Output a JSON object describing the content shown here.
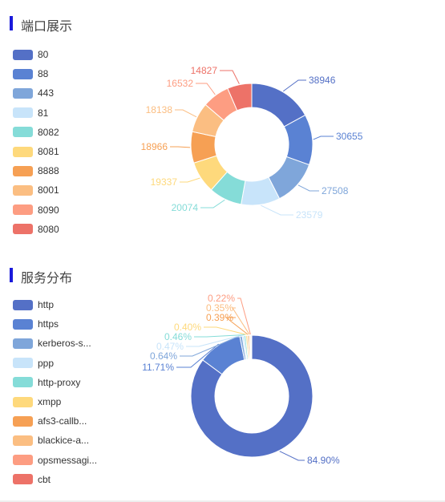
{
  "sections": [
    {
      "title": "端口展示"
    },
    {
      "title": "服务分布"
    }
  ],
  "chart_data": [
    {
      "type": "pie",
      "variant": "donut",
      "title": "端口展示",
      "categories": [
        "80",
        "88",
        "443",
        "81",
        "8082",
        "8081",
        "8888",
        "8001",
        "8090",
        "8080"
      ],
      "values": [
        38946,
        30655,
        27508,
        23579,
        20074,
        19337,
        18966,
        18138,
        16532,
        14827
      ],
      "labels": [
        "38946",
        "30655",
        "27508",
        "23579",
        "20074",
        "19337",
        "18966",
        "18138",
        "16532",
        "14827"
      ],
      "colors": [
        "#5470c6",
        "#5a82d3",
        "#7fa6da",
        "#c8e4fa",
        "#85dcd8",
        "#fed97c",
        "#f6a054",
        "#fbbe82",
        "#fd9d82",
        "#ed7268"
      ],
      "legend_position": "left"
    },
    {
      "type": "pie",
      "variant": "donut",
      "title": "服务分布",
      "categories": [
        "http",
        "https",
        "kerberos-s...",
        "ppp",
        "http-proxy",
        "xmpp",
        "afs3-callb...",
        "blackice-a...",
        "opsmessagi...",
        "cbt"
      ],
      "values": [
        84.9,
        11.71,
        0.64,
        0.47,
        0.46,
        0.4,
        0.39,
        0.35,
        0.22,
        0.22
      ],
      "labels": [
        "84.90%",
        "11.71%",
        "0.64%",
        "0.47%",
        "0.46%",
        "0.40%",
        "0.39%",
        "0.35%",
        "0.22%",
        ""
      ],
      "colors": [
        "#5470c6",
        "#5a82d3",
        "#7fa6da",
        "#c8e4fa",
        "#85dcd8",
        "#fed97c",
        "#f6a054",
        "#fbbe82",
        "#fd9d82",
        "#ed7268"
      ],
      "legend_position": "left"
    }
  ]
}
